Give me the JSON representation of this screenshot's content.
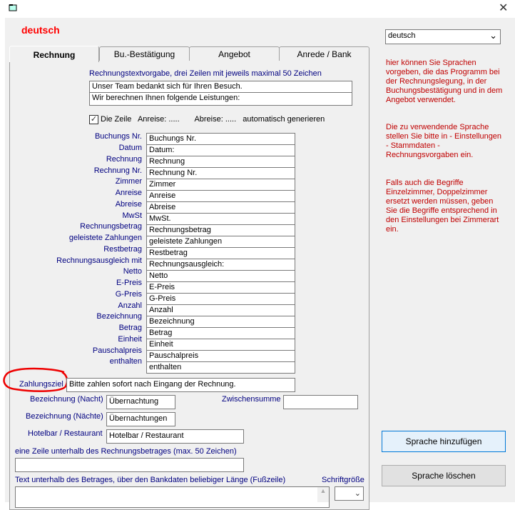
{
  "window": {
    "close_icon": "close-icon",
    "app_icon": "app-icon"
  },
  "header": {
    "language_title": "deutsch",
    "language_color": "#ff0000"
  },
  "tabs": [
    {
      "label": "Rechnung",
      "active": true
    },
    {
      "label": "Bu.-Bestätigung"
    },
    {
      "label": "Angebot"
    },
    {
      "label": "Anrede / Bank"
    }
  ],
  "invoice": {
    "template_label": "Rechnungstextvorgabe, drei  Zeilen mit jeweils maximal 50 Zeichen",
    "template_lines": [
      "Unser Team bedankt sich für Ihren Besuch.",
      "Wir berechnen Ihnen folgende Leistungen:"
    ],
    "auto_line": {
      "checked": true,
      "label": "Die Zeile   Anreise: .....       Abreise: .....   automatisch generieren"
    },
    "fields": [
      {
        "label": "Buchungs Nr.",
        "value": "Buchungs Nr."
      },
      {
        "label": "Datum",
        "value": "Datum:"
      },
      {
        "label": "Rechnung",
        "value": "Rechnung"
      },
      {
        "label": "Rechnung Nr.",
        "value": "Rechnung Nr."
      },
      {
        "label": "Zimmer",
        "value": "Zimmer"
      },
      {
        "label": "Anreise",
        "value": "Anreise"
      },
      {
        "label": "Abreise",
        "value": "Abreise"
      },
      {
        "label": "MwSt",
        "value": "MwSt."
      },
      {
        "label": "Rechnungsbetrag",
        "value": "Rechnungsbetrag"
      },
      {
        "label": "geleistete Zahlungen",
        "value": "geleistete Zahlungen"
      },
      {
        "label": "Restbetrag",
        "value": "Restbetrag"
      },
      {
        "label": "Rechnungsausgleich mit",
        "value": "Rechnungsausgleich:"
      },
      {
        "label": "Netto",
        "value": "Netto"
      },
      {
        "label": "E-Preis",
        "value": "E-Preis"
      },
      {
        "label": "G-Preis",
        "value": "G-Preis"
      },
      {
        "label": "Anzahl",
        "value": "Anzahl"
      },
      {
        "label": "Bezeichnung",
        "value": "Bezeichnung"
      },
      {
        "label": "Betrag",
        "value": "Betrag"
      },
      {
        "label": "Einheit",
        "value": "Einheit"
      },
      {
        "label": "Pauschalpreis",
        "value": "Pauschalpreis"
      },
      {
        "label": "enthalten",
        "value": "enthalten"
      }
    ],
    "payment_term": {
      "label": "Zahlungsziel",
      "value": "Bitte zahlen sofort nach Eingang der Rechnung."
    },
    "night": {
      "label": "Bezeichnung (Nacht)",
      "value": "Übernachtung"
    },
    "nights": {
      "label": "Bezeichnung (Nächte)",
      "value": "Übernachtungen"
    },
    "subtotal": {
      "label": "Zwischensumme",
      "value": ""
    },
    "hotelbar": {
      "label": "Hotelbar / Restaurant",
      "value": "Hotelbar / Restaurant"
    },
    "below_amount": {
      "label": "eine Zeile unterhalb des Rechnungsbetrages (max. 50 Zeichen)",
      "value": ""
    },
    "footer_text": {
      "label": "Text unterhalb des Betrages, über den Bankdaten beliebiger Länge (Fußzeile)",
      "value": ""
    },
    "font_size": {
      "label": "Schriftgröße",
      "value": ""
    }
  },
  "sidebar": {
    "language_select": "deutsch",
    "help": [
      "hier können Sie Sprachen vorgeben, die das Programm bei der Rechnungslegung, in der Buchungsbestätigung und in  dem Angebot verwendet.",
      "Die zu verwendende Sprache stellen Sie bitte in - Einstellungen - Stammdaten - Rechnungsvorgaben  ein.",
      "Falls auch die Begriffe Einzelzimmer, Doppelzimmer ersetzt werden müssen, geben Sie die Begriffe entsprechend in den Einstellungen bei  Zimmerart ein."
    ],
    "add_button": "Sprache hinzufügen",
    "delete_button": "Sprache löschen"
  }
}
